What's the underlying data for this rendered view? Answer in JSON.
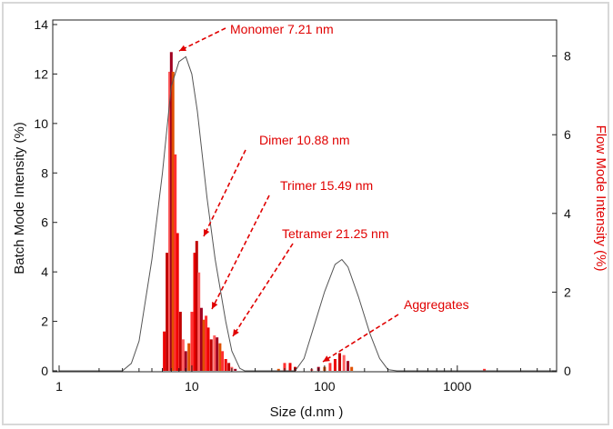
{
  "chart_data": {
    "type": "bar",
    "xlabel": "Size  (d.nm )",
    "ylabel": "Batch Mode Intensity (%)",
    "y2label": "Flow Mode Intensity (%)",
    "xscale": "log",
    "xlim": [
      1,
      5600
    ],
    "ylim": [
      0,
      14
    ],
    "y2lim": [
      0,
      8.8
    ],
    "xticks": [
      1,
      10,
      100,
      1000
    ],
    "xtick_labels": [
      "1",
      "10",
      "100",
      "1000"
    ],
    "yticks": [
      0,
      2,
      4,
      6,
      8,
      10,
      12,
      14
    ],
    "y2ticks": [
      0,
      2,
      4,
      6,
      8
    ],
    "grid": false,
    "colors": {
      "batch": "#555555",
      "flow": "#ee0000",
      "annotation": "#e00000",
      "y2label": "#e00000"
    },
    "series": [
      {
        "name": "Batch Mode",
        "axis": "left",
        "type": "line",
        "x": [
          1,
          3,
          3.5,
          4,
          5,
          6,
          7,
          8,
          9,
          10,
          11,
          13,
          15,
          18,
          20,
          23,
          25,
          60,
          70,
          80,
          100,
          120,
          135,
          150,
          180,
          220,
          260,
          300,
          350,
          5600
        ],
        "y": [
          0,
          0,
          0.3,
          1.2,
          4.5,
          8,
          11.5,
          12.5,
          12.7,
          12,
          10.5,
          7,
          4.5,
          2,
          0.8,
          0.1,
          0,
          0,
          0.5,
          1.5,
          3.2,
          4.3,
          4.5,
          4.2,
          3,
          1.5,
          0.5,
          0.05,
          0,
          0
        ]
      },
      {
        "name": "Flow Mode",
        "axis": "right",
        "type": "bar",
        "x": [
          6.2,
          6.5,
          6.8,
          7.0,
          7.21,
          7.5,
          7.8,
          8.2,
          8.6,
          9,
          9.5,
          10,
          10.5,
          10.88,
          11.3,
          11.8,
          12.3,
          12.8,
          13.3,
          14,
          14.8,
          15.49,
          16.3,
          17,
          18,
          19,
          20,
          21.25,
          45,
          50,
          55,
          60,
          80,
          90,
          100,
          110,
          120,
          130,
          140,
          150,
          160,
          1600
        ],
        "y": [
          1.0,
          3,
          7.6,
          8.1,
          7.6,
          5.5,
          3.5,
          1.5,
          0.8,
          0.5,
          0.7,
          1.5,
          3.0,
          3.3,
          2.5,
          1.6,
          1.3,
          1.4,
          1.1,
          0.8,
          0.9,
          0.85,
          0.7,
          0.5,
          0.3,
          0.2,
          0.1,
          0.05,
          0.05,
          0.2,
          0.2,
          0.1,
          0.05,
          0.1,
          0.1,
          0.2,
          0.3,
          0.45,
          0.4,
          0.25,
          0.1,
          0.05
        ]
      }
    ],
    "annotations": [
      {
        "text": "Monomer 7.21 nm",
        "x": 7.21
      },
      {
        "text": "Dimer 10.88 nm",
        "x": 10.88
      },
      {
        "text": "Trimer 15.49 nm",
        "x": 12.5
      },
      {
        "text": "Tetramer 21.25 nm",
        "x": 18
      },
      {
        "text": "Aggregates",
        "x": 100
      }
    ]
  }
}
